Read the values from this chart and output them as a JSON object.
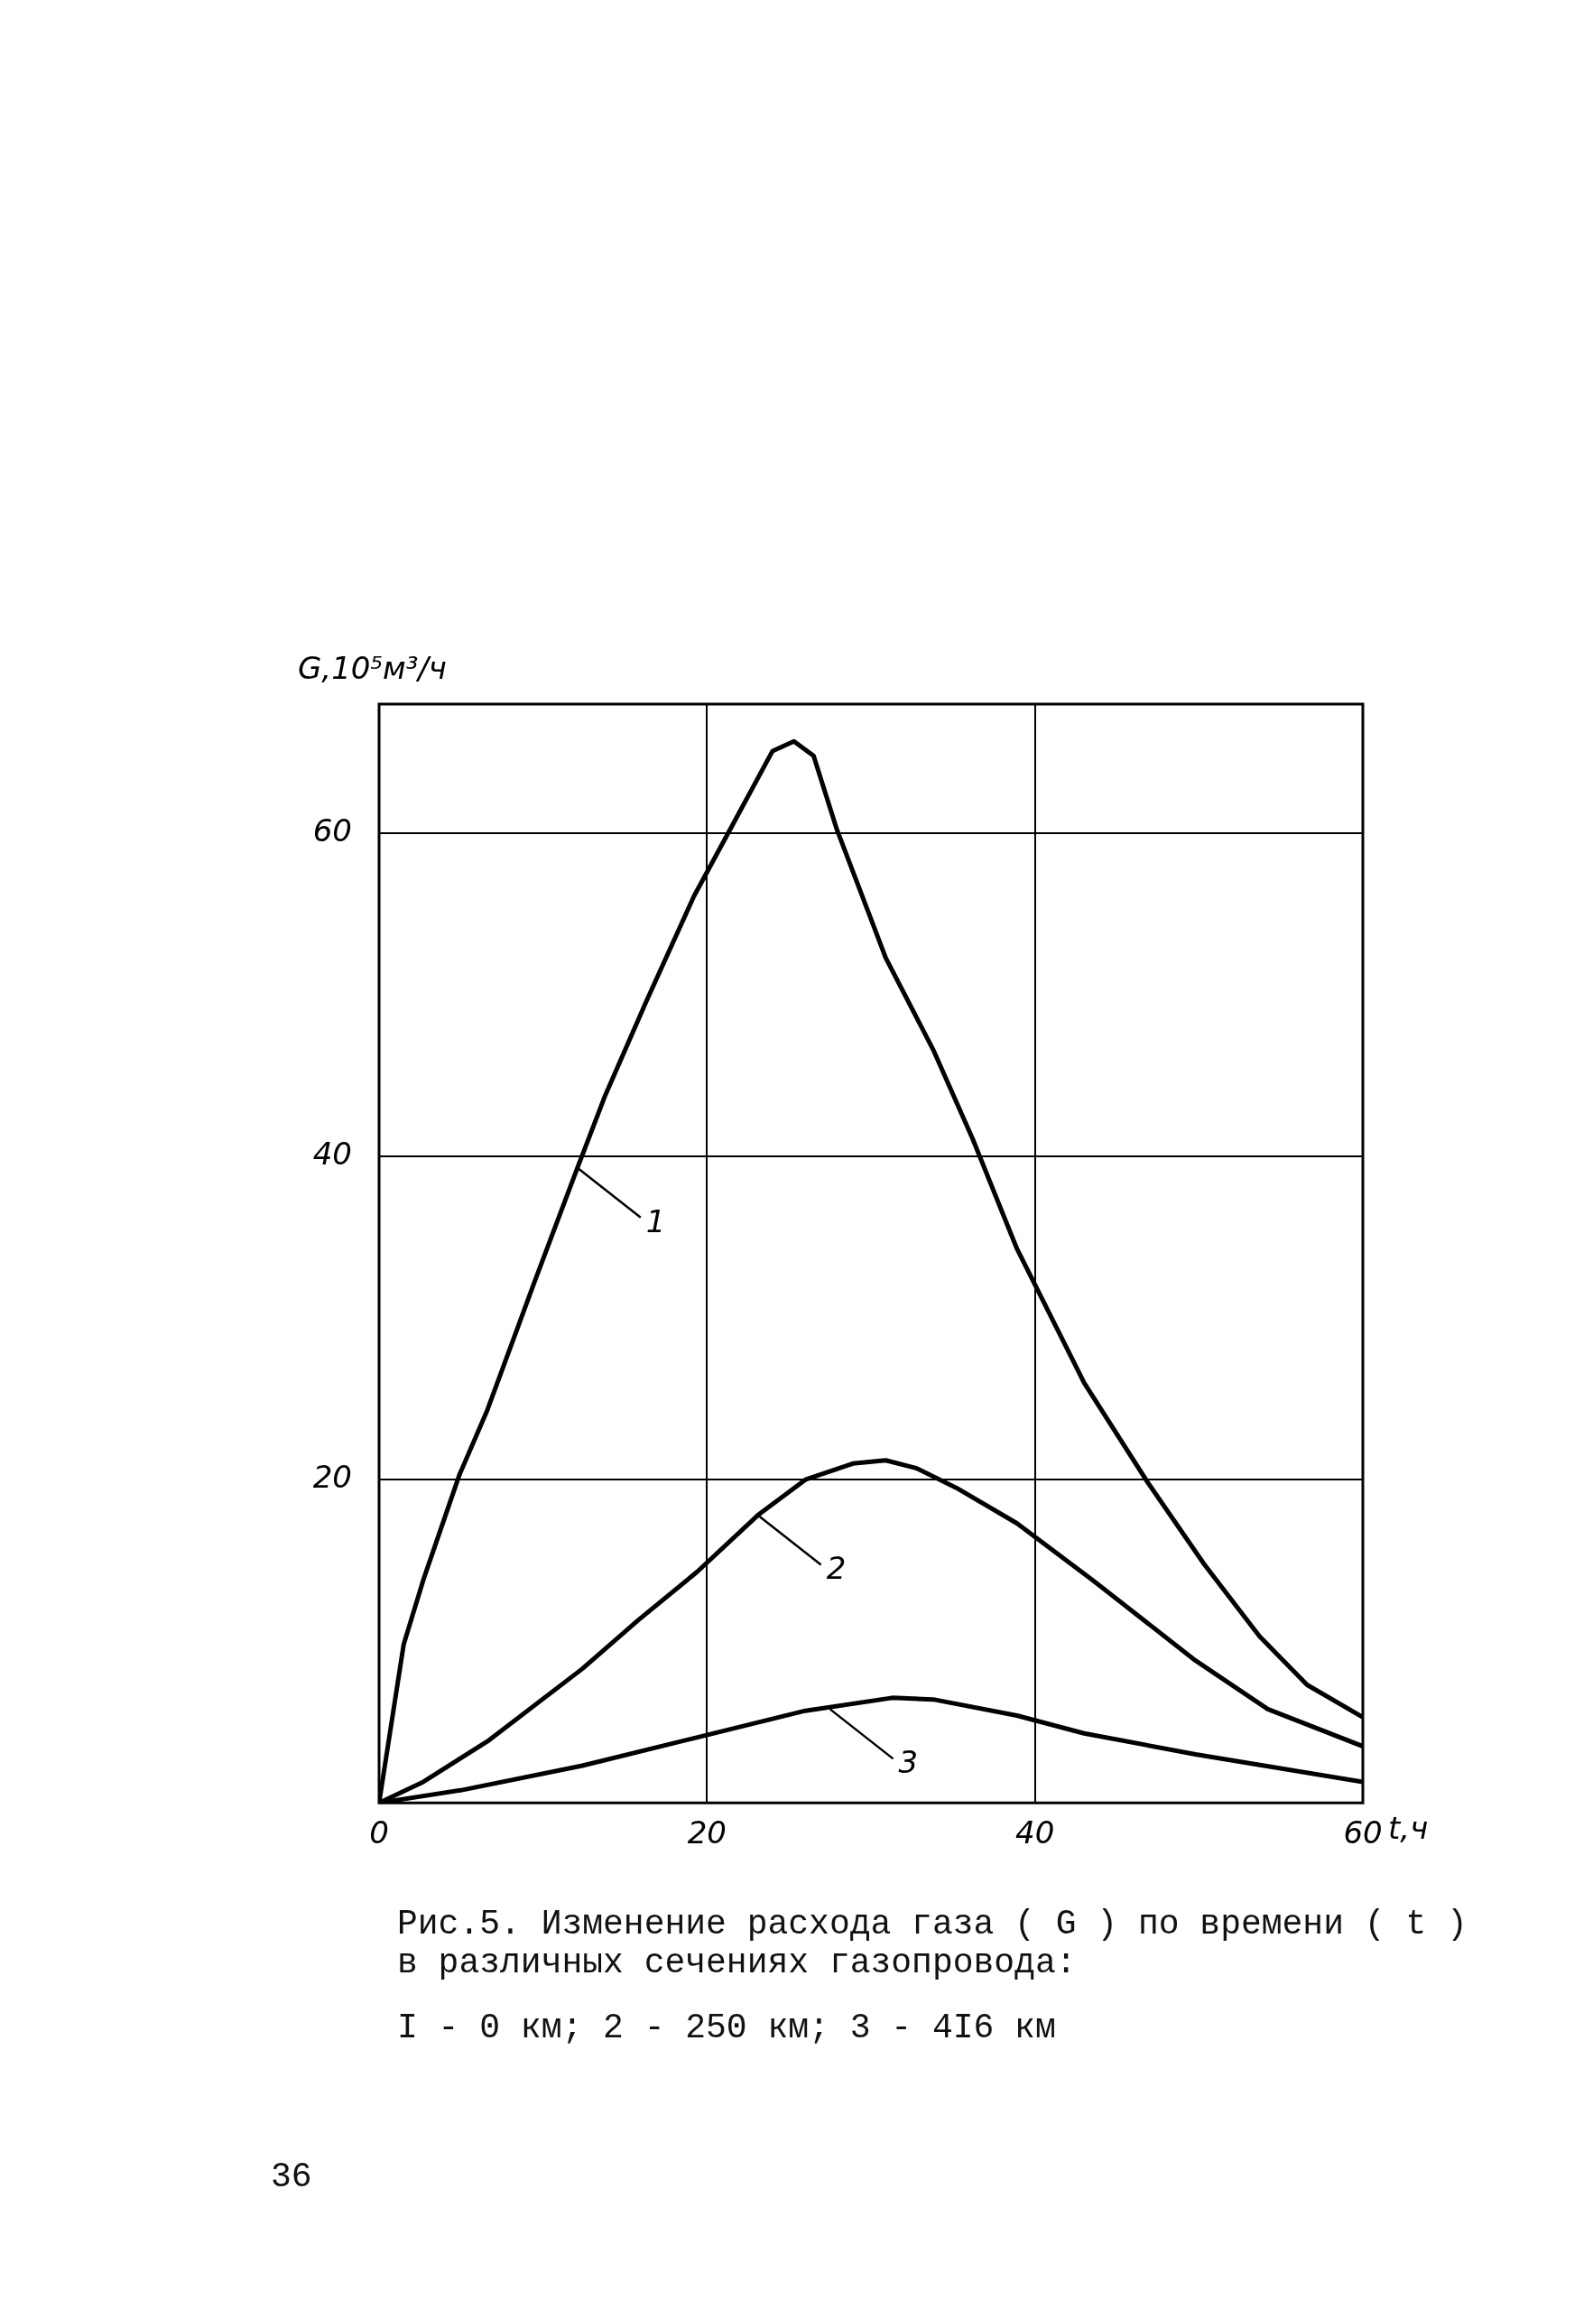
{
  "chart_data": {
    "type": "line",
    "ylabel": "G,10⁵м³/ч",
    "xlabel": "t,ч",
    "xlim": [
      0,
      60
    ],
    "xticks": [
      0,
      20,
      40,
      60
    ],
    "ylim": [
      0,
      68
    ],
    "yticks": [
      {
        "value": 0,
        "label": null
      },
      20,
      40,
      60
    ],
    "grid": true,
    "legend": false,
    "marker": "none",
    "line_style": "solid",
    "series": [
      {
        "color": "#000000",
        "x": [
          0,
          1.5,
          2.7,
          4.9,
          6.6,
          9.5,
          12.1,
          13.8,
          16.3,
          19.2,
          21.6,
          24.0,
          25.3,
          26.5,
          27.9,
          30.9,
          33.8,
          36.2,
          38.9,
          43.0,
          46.9,
          50.3,
          53.7,
          56.6,
          60
        ],
        "values": [
          0,
          9.8,
          13.8,
          20.3,
          24.3,
          32.3,
          39.3,
          43.8,
          49.6,
          56.1,
          60.6,
          65.1,
          65.7,
          64.8,
          60.3,
          52.3,
          46.6,
          41.1,
          34.3,
          26.0,
          19.8,
          14.8,
          10.3,
          7.3,
          5.3
        ]
      },
      {
        "color": "#000000",
        "x": [
          0,
          2.7,
          6.6,
          12.4,
          15.8,
          19.4,
          23.1,
          26.0,
          28.9,
          30.9,
          32.8,
          35.2,
          38.9,
          43.5,
          49.8,
          54.2,
          60
        ],
        "values": [
          0,
          1.3,
          3.8,
          8.3,
          11.3,
          14.3,
          17.8,
          20.0,
          21.0,
          21.2,
          20.7,
          19.5,
          17.3,
          13.8,
          8.8,
          5.8,
          3.5
        ]
      },
      {
        "color": "#000000",
        "x": [
          0,
          5.1,
          12.4,
          19.2,
          26.0,
          31.3,
          33.8,
          38.9,
          43.0,
          49.8,
          60
        ],
        "values": [
          0,
          0.8,
          2.3,
          4.0,
          5.7,
          6.5,
          6.4,
          5.4,
          4.3,
          3.0,
          1.3
        ]
      }
    ],
    "annotations": [
      {
        "text": "1",
        "x": 12.1,
        "y": 39.3
      },
      {
        "text": "2",
        "x": 23.1,
        "y": 17.8
      },
      {
        "text": "3",
        "x": 27.5,
        "y": 5.8
      },
      "Рис.5. Изменение расхода газа ( G ) по времени ( t )\nв различных сечениях газопровода:",
      "I - 0 км; 2 - 250 км; 3 - 4I6 км",
      "36"
    ]
  }
}
